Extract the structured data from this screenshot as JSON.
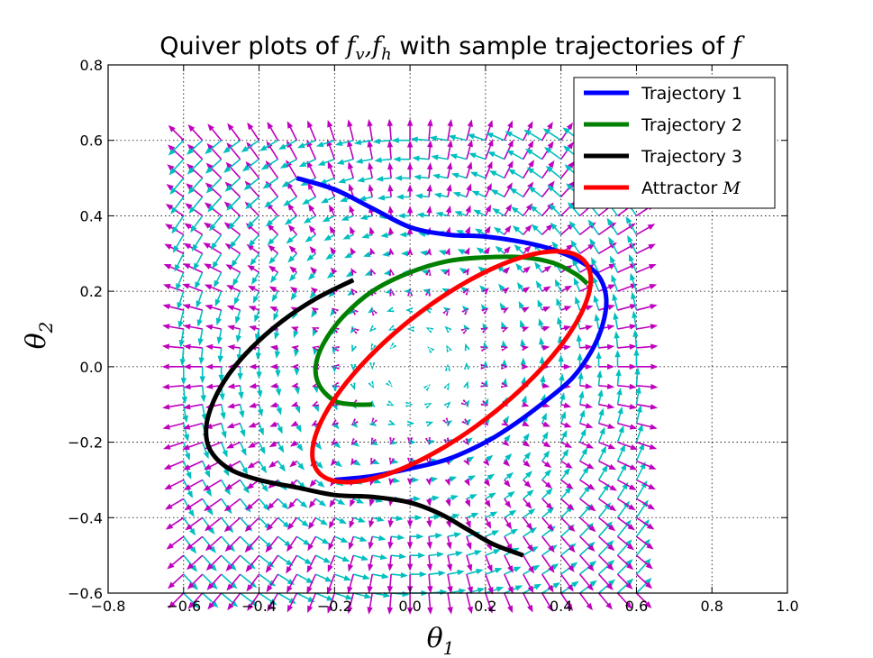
{
  "chart_data": {
    "type": "line",
    "title": {
      "prefix": "Quiver plots of ",
      "math1": "f",
      "sub1": "v",
      "sep": ",",
      "math2": "f",
      "sub2": "h",
      "middle": " with sample trajectories of ",
      "math3": "f"
    },
    "xlabel": {
      "base": "θ",
      "sub": "1"
    },
    "ylabel": {
      "base": "θ",
      "sub": "2"
    },
    "xlim": [
      -0.8,
      1.0
    ],
    "ylim": [
      -0.6,
      0.8
    ],
    "xticks": [
      "−0.8",
      "−0.6",
      "−0.4",
      "−0.2",
      "0.0",
      "0.2",
      "0.4",
      "0.6",
      "0.8",
      "1.0"
    ],
    "yticks": [
      "−0.6",
      "−0.4",
      "−0.2",
      "0.0",
      "0.2",
      "0.4",
      "0.6",
      "0.8"
    ],
    "grid": true,
    "legend_position": "top-right",
    "quiver": {
      "x_range": [
        -0.6,
        0.6
      ],
      "y_range": [
        -0.6,
        0.6
      ],
      "step": 0.05,
      "colors": [
        "#00bfbf",
        "#bf00bf"
      ]
    },
    "series": [
      {
        "name": "Trajectory 1",
        "color": "#0000ff",
        "points": [
          [
            -0.3,
            0.5
          ],
          [
            -0.2,
            0.47
          ],
          [
            -0.1,
            0.42
          ],
          [
            0.0,
            0.37
          ],
          [
            0.1,
            0.35
          ],
          [
            0.2,
            0.345
          ],
          [
            0.3,
            0.33
          ],
          [
            0.38,
            0.31
          ],
          [
            0.45,
            0.28
          ],
          [
            0.5,
            0.24
          ],
          [
            0.52,
            0.18
          ],
          [
            0.51,
            0.11
          ],
          [
            0.48,
            0.04
          ],
          [
            0.43,
            -0.03
          ],
          [
            0.36,
            -0.09
          ],
          [
            0.28,
            -0.15
          ],
          [
            0.2,
            -0.2
          ],
          [
            0.1,
            -0.245
          ],
          [
            0.0,
            -0.27
          ],
          [
            -0.1,
            -0.29
          ],
          [
            -0.2,
            -0.3
          ]
        ]
      },
      {
        "name": "Trajectory 2",
        "color": "#008000",
        "points": [
          [
            -0.1,
            -0.1
          ],
          [
            -0.15,
            -0.1
          ],
          [
            -0.2,
            -0.09
          ],
          [
            -0.24,
            -0.05
          ],
          [
            -0.25,
            0.0
          ],
          [
            -0.23,
            0.06
          ],
          [
            -0.18,
            0.13
          ],
          [
            -0.1,
            0.2
          ],
          [
            0.0,
            0.25
          ],
          [
            0.1,
            0.28
          ],
          [
            0.2,
            0.29
          ],
          [
            0.3,
            0.29
          ],
          [
            0.38,
            0.275
          ],
          [
            0.44,
            0.245
          ],
          [
            0.47,
            0.22
          ]
        ]
      },
      {
        "name": "Trajectory 3",
        "color": "#000000",
        "points": [
          [
            0.3,
            -0.5
          ],
          [
            0.22,
            -0.47
          ],
          [
            0.15,
            -0.43
          ],
          [
            0.08,
            -0.39
          ],
          [
            0.0,
            -0.36
          ],
          [
            -0.1,
            -0.345
          ],
          [
            -0.2,
            -0.34
          ],
          [
            -0.3,
            -0.32
          ],
          [
            -0.4,
            -0.3
          ],
          [
            -0.48,
            -0.27
          ],
          [
            -0.53,
            -0.22
          ],
          [
            -0.54,
            -0.16
          ],
          [
            -0.52,
            -0.09
          ],
          [
            -0.48,
            -0.02
          ],
          [
            -0.42,
            0.05
          ],
          [
            -0.34,
            0.12
          ],
          [
            -0.25,
            0.18
          ],
          [
            -0.15,
            0.23
          ]
        ]
      },
      {
        "name": "Attractor ",
        "name_math": "M",
        "color": "#ff0000",
        "ellipse": {
          "cx": 0.11,
          "cy": 0.0,
          "a": 0.45,
          "b": 0.165,
          "angle_deg": 38
        }
      }
    ]
  }
}
